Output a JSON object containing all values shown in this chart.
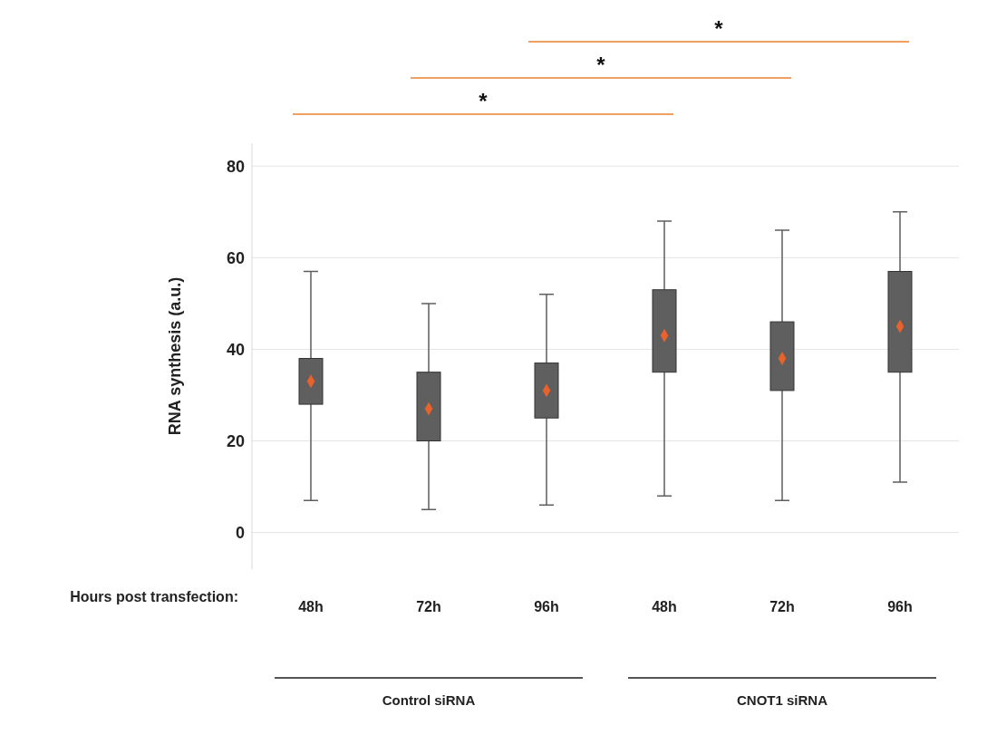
{
  "chart_data": {
    "type": "box",
    "ylabel": "RNA synthesis  (a.u.)",
    "xlabel": "Hours post transfection:",
    "categories": [
      "48h",
      "72h",
      "96h",
      "48h",
      "72h",
      "96h"
    ],
    "series": [
      {
        "color": "#5f5f5f",
        "boxes": [
          {
            "low": 7,
            "q1": 28,
            "median": 33,
            "q3": 38,
            "high": 57
          },
          {
            "low": 5,
            "q1": 20,
            "median": 27,
            "q3": 35,
            "high": 50
          },
          {
            "low": 6,
            "q1": 25,
            "median": 31,
            "q3": 37,
            "high": 52
          },
          {
            "low": 8,
            "q1": 35,
            "median": 43,
            "q3": 53,
            "high": 68
          },
          {
            "low": 7,
            "q1": 31,
            "median": 38,
            "q3": 46,
            "high": 66
          },
          {
            "low": 11,
            "q1": 35,
            "median": 45,
            "q3": 57,
            "high": 70
          }
        ]
      }
    ],
    "ylim": [
      -8,
      85
    ],
    "yticks": [
      0,
      20,
      40,
      60,
      80
    ],
    "grid": "y",
    "annotations": [
      "*",
      "*",
      "*",
      "Control siRNA",
      "CNOT1 siRNA"
    ]
  }
}
